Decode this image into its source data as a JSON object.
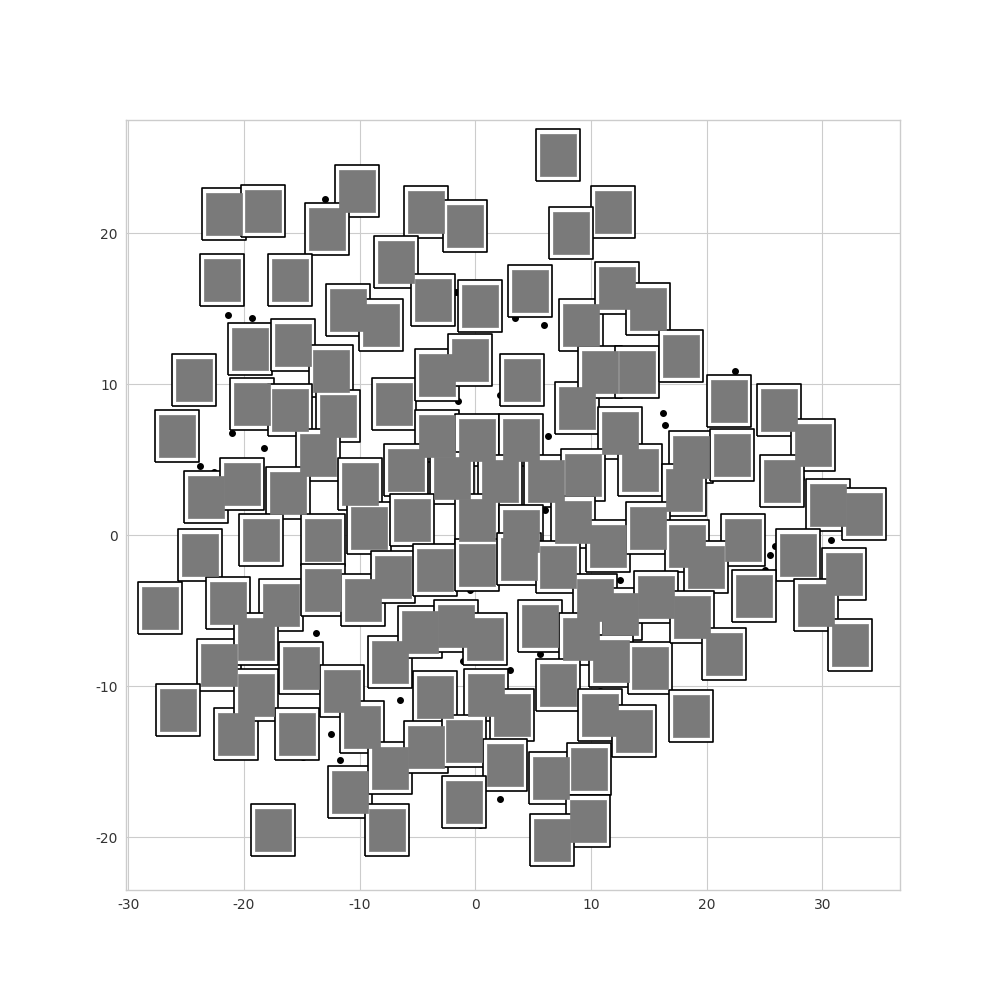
{
  "chart_data": {
    "type": "scatter",
    "xlim": [
      -30.2,
      36.7
    ],
    "ylim": [
      -23.5,
      27.5
    ],
    "xticks": [
      -30,
      -20,
      -10,
      0,
      10,
      20,
      30
    ],
    "yticks": [
      -20,
      -10,
      0,
      10,
      20
    ],
    "grid": true,
    "series": [
      {
        "type": "scatter",
        "marker": "o",
        "color": "#000000",
        "x": [
          -21.4,
          -19.3,
          -13.0,
          -8.2,
          -1.7,
          3.4,
          5.9,
          2.1,
          -1.5,
          7.3,
          6.3,
          16.2,
          22.4,
          28.1,
          25.5,
          11.6,
          16.4,
          -13.8,
          -14.9,
          -16.3,
          -21.0,
          -22.6,
          -23.8,
          -6.9,
          -6.5,
          -4.8,
          -10.0,
          2.1,
          -0.5,
          -2.6,
          3.9,
          0.4,
          1.3,
          2.6,
          6.0,
          4.3,
          -1.1,
          -3.0,
          -6.1,
          -11.7,
          -12.5,
          12.5,
          18.6,
          25.0,
          30.7,
          25.9,
          -10.6,
          -1.7,
          3.9,
          -10.8,
          -4.3,
          -18.3,
          -23.8,
          5.6,
          3.0,
          10.8,
          0.4,
          2.1
        ],
        "values": [
          14.6,
          14.4,
          22.3,
          17.4,
          16.1,
          14.4,
          13.9,
          9.3,
          8.9,
          8.6,
          6.6,
          8.1,
          10.9,
          3.8,
          -1.3,
          -6.9,
          7.3,
          -6.5,
          -14.7,
          -14.1,
          6.8,
          4.2,
          4.6,
          -6.9,
          -10.9,
          -10.9,
          -5.0,
          4.3,
          -3.6,
          -4.7,
          -13.2,
          -0.9,
          -0.7,
          -1.3,
          1.7,
          -6.9,
          -8.3,
          -15.5,
          -16.9,
          -14.9,
          -13.2,
          -3.0,
          -3.6,
          -2.3,
          -0.3,
          -0.7,
          -0.3,
          4.8,
          7.6,
          8.3,
          9.3,
          5.8,
          1.7,
          -7.9,
          -8.9,
          -10.3,
          -19.2,
          -17.5
        ]
      },
      {
        "type": "scatter",
        "marker": "s",
        "color": "#7a7a7a",
        "x": [
          7.1,
          -10.2,
          -21.7,
          -18.4,
          -12.8,
          -4.3,
          -0.9,
          11.9,
          8.3,
          -6.9,
          -21.9,
          -16.0,
          -11.0,
          -3.7,
          0.4,
          4.7,
          9.1,
          12.2,
          14.9,
          -8.2,
          -19.5,
          -15.8,
          -24.3,
          -19.3,
          -12.5,
          -7.0,
          -3.3,
          -0.5,
          4.0,
          8.8,
          10.8,
          14.0,
          17.8,
          21.9,
          26.2,
          29.2,
          -25.8,
          -16.0,
          -11.9,
          -3.3,
          0.1,
          3.9,
          12.5,
          18.6,
          22.2,
          26.5,
          -13.6,
          -23.3,
          -20.2,
          -16.2,
          -10.0,
          -6.0,
          -2.0,
          2.1,
          6.1,
          9.3,
          14.2,
          18.0,
          30.5,
          33.6,
          -23.8,
          -18.5,
          -13.2,
          -9.2,
          -5.5,
          0.1,
          3.9,
          8.4,
          11.5,
          14.9,
          18.3,
          23.1,
          27.9,
          31.9,
          -27.3,
          -21.4,
          -16.8,
          -13.2,
          -9.7,
          -7.1,
          -3.5,
          0.1,
          3.8,
          7.1,
          10.3,
          12.5,
          15.6,
          19.9,
          24.1,
          29.4,
          32.4,
          -22.2,
          -19.0,
          -15.1,
          -11.5,
          -7.4,
          -4.8,
          -1.7,
          0.8,
          5.6,
          9.1,
          11.7,
          15.1,
          18.7,
          21.5,
          -25.7,
          -20.7,
          -19.0,
          -15.4,
          -9.8,
          -3.5,
          0.9,
          3.2,
          7.1,
          10.8,
          13.7,
          18.6,
          -10.8,
          -7.4,
          -4.3,
          -1.0,
          2.6,
          6.5,
          9.8,
          -1.0,
          9.7,
          -17.5,
          -7.6,
          6.6
        ],
        "values": [
          25.2,
          22.8,
          21.3,
          21.5,
          20.3,
          21.4,
          20.5,
          21.4,
          20.0,
          18.1,
          16.9,
          16.9,
          14.9,
          15.6,
          15.2,
          16.2,
          13.9,
          16.4,
          15.0,
          13.9,
          12.3,
          12.6,
          10.3,
          8.7,
          10.9,
          8.7,
          10.6,
          11.6,
          10.3,
          8.4,
          10.8,
          10.8,
          11.9,
          8.9,
          8.3,
          6.0,
          6.6,
          8.3,
          7.9,
          6.6,
          6.3,
          6.3,
          6.8,
          5.2,
          5.3,
          3.6,
          5.3,
          2.5,
          3.4,
          2.8,
          3.4,
          4.3,
          3.8,
          3.6,
          3.6,
          4.0,
          4.3,
          3.0,
          2.0,
          1.4,
          -1.3,
          -0.3,
          -0.3,
          0.5,
          1.0,
          1.0,
          0.3,
          0.9,
          -0.7,
          0.5,
          -0.7,
          -0.3,
          -1.3,
          -2.6,
          -4.8,
          -4.5,
          -4.6,
          -3.6,
          -4.3,
          -2.8,
          -2.3,
          -2.0,
          -1.6,
          -2.1,
          -4.3,
          -5.2,
          -4.1,
          -2.1,
          -4.0,
          -4.6,
          -7.3,
          -8.6,
          -6.9,
          -8.8,
          -10.3,
          -8.4,
          -6.4,
          -6.0,
          -6.9,
          -6.0,
          -6.9,
          -8.3,
          -8.8,
          -5.4,
          -7.9,
          -11.6,
          -13.2,
          -10.6,
          -13.2,
          -12.7,
          -10.7,
          -10.6,
          -11.9,
          -9.9,
          -11.9,
          -13.0,
          -12.0,
          -17.0,
          -15.4,
          -14.0,
          -13.6,
          -15.2,
          -16.1,
          -15.5,
          -17.7,
          -18.9,
          -19.5,
          -19.5,
          -20.2
        ]
      }
    ]
  }
}
